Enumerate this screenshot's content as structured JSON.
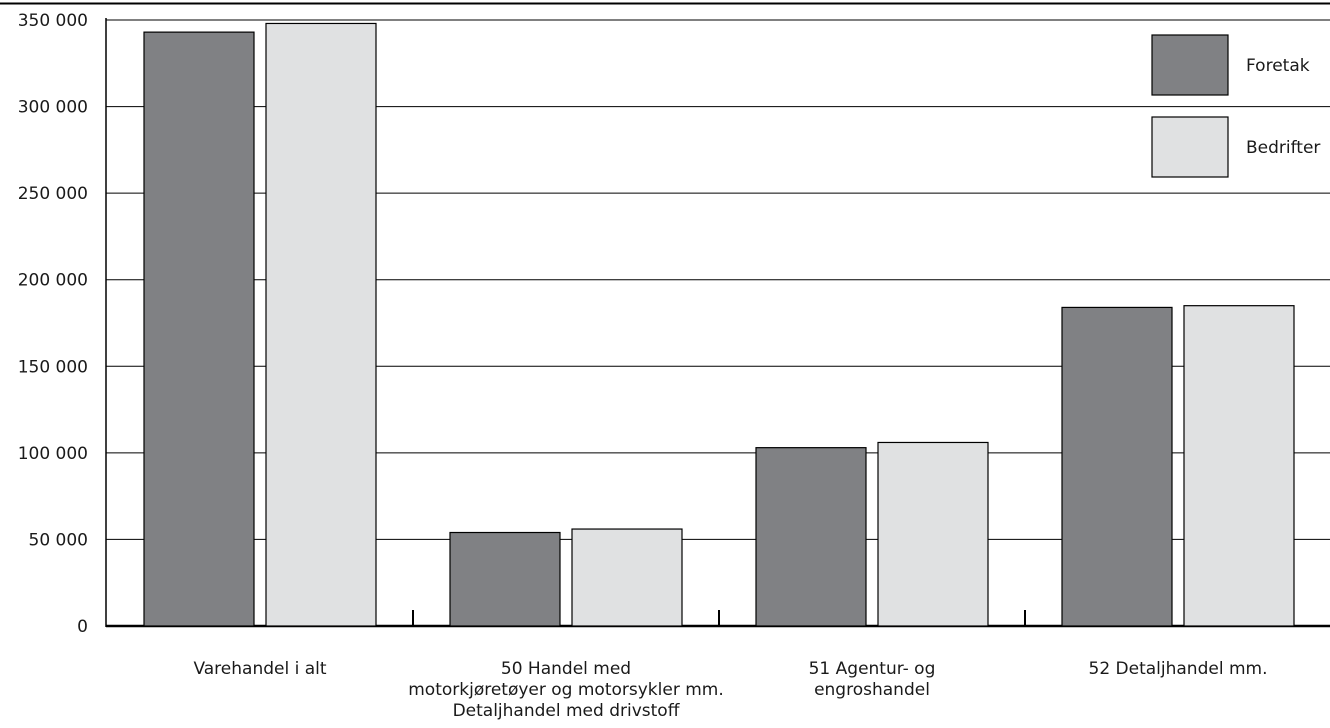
{
  "chart_data": {
    "type": "bar",
    "categories": [
      [
        "Varehandel i alt"
      ],
      [
        "50 Handel med",
        "motorkjøretøyer og motorsykler mm.",
        "Detaljhandel med drivstoff"
      ],
      [
        "51 Agentur- og",
        "engroshandel"
      ],
      [
        "52 Detaljhandel mm."
      ]
    ],
    "series": [
      {
        "name": "Foretak",
        "color": "#808184",
        "values": [
          343000,
          54000,
          103000,
          184000
        ]
      },
      {
        "name": "Bedrifter",
        "color": "#e0e1e2",
        "values": [
          348000,
          56000,
          106000,
          185000
        ]
      }
    ],
    "ylim": [
      0,
      350000
    ],
    "yticks": [
      0,
      50000,
      100000,
      150000,
      200000,
      250000,
      300000,
      350000
    ],
    "ytick_labels": [
      "0",
      "50 000",
      "100 000",
      "150 000",
      "200 000",
      "250 000",
      "300 000",
      "350 000"
    ],
    "grid": true,
    "legend_position": "top-right",
    "title": "",
    "xlabel": "",
    "ylabel": ""
  }
}
